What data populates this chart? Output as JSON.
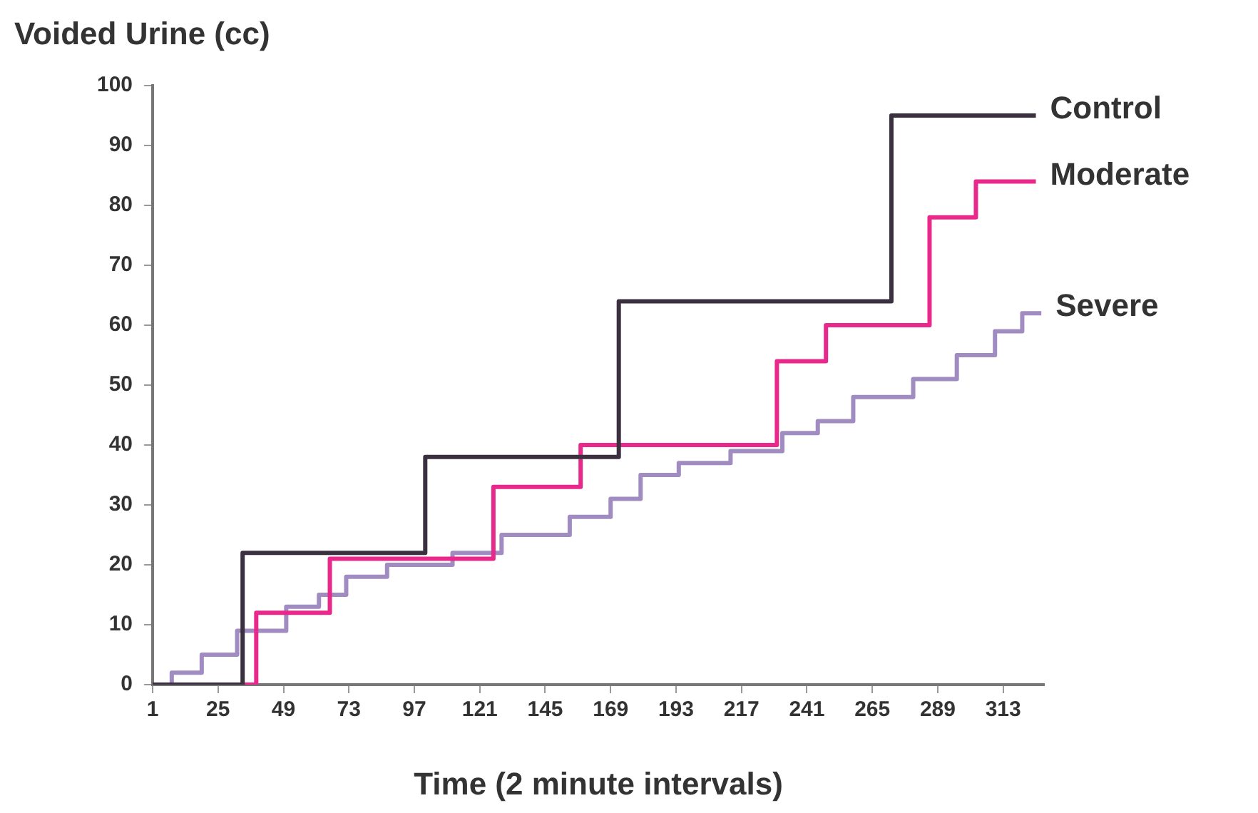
{
  "chart_data": {
    "type": "step",
    "ylabel": "Voided Urine (cc)",
    "xlabel": "Time (2 minute intervals)",
    "xlim": [
      1,
      328
    ],
    "xticks": [
      1,
      25,
      49,
      73,
      97,
      121,
      145,
      169,
      193,
      217,
      241,
      265,
      289,
      313
    ],
    "ylim": [
      0,
      100
    ],
    "yticks": [
      0,
      10,
      20,
      30,
      40,
      50,
      60,
      70,
      80,
      90,
      100
    ],
    "grid": false,
    "legend": false,
    "marker": "none",
    "series": [
      {
        "name": "Control",
        "color": "#3a3040",
        "x": [
          1,
          34,
          101,
          172,
          272,
          325
        ],
        "values": [
          0,
          22,
          38,
          64,
          95,
          95
        ]
      },
      {
        "name": "Moderate",
        "color": "#e8288a",
        "x": [
          1,
          39,
          66,
          126,
          158,
          230,
          248,
          286,
          303,
          325
        ],
        "values": [
          0,
          12,
          21,
          33,
          40,
          54,
          60,
          78,
          84,
          84
        ]
      },
      {
        "name": "Severe",
        "color": "#a08cc0",
        "x": [
          1,
          8,
          19,
          32,
          50,
          62,
          72,
          87,
          111,
          129,
          154,
          169,
          180,
          194,
          213,
          232,
          245,
          258,
          280,
          296,
          310,
          320,
          327
        ],
        "values": [
          0,
          2,
          5,
          9,
          13,
          15,
          18,
          20,
          22,
          25,
          28,
          31,
          35,
          37,
          39,
          42,
          44,
          48,
          51,
          55,
          59,
          62,
          62
        ]
      }
    ]
  }
}
